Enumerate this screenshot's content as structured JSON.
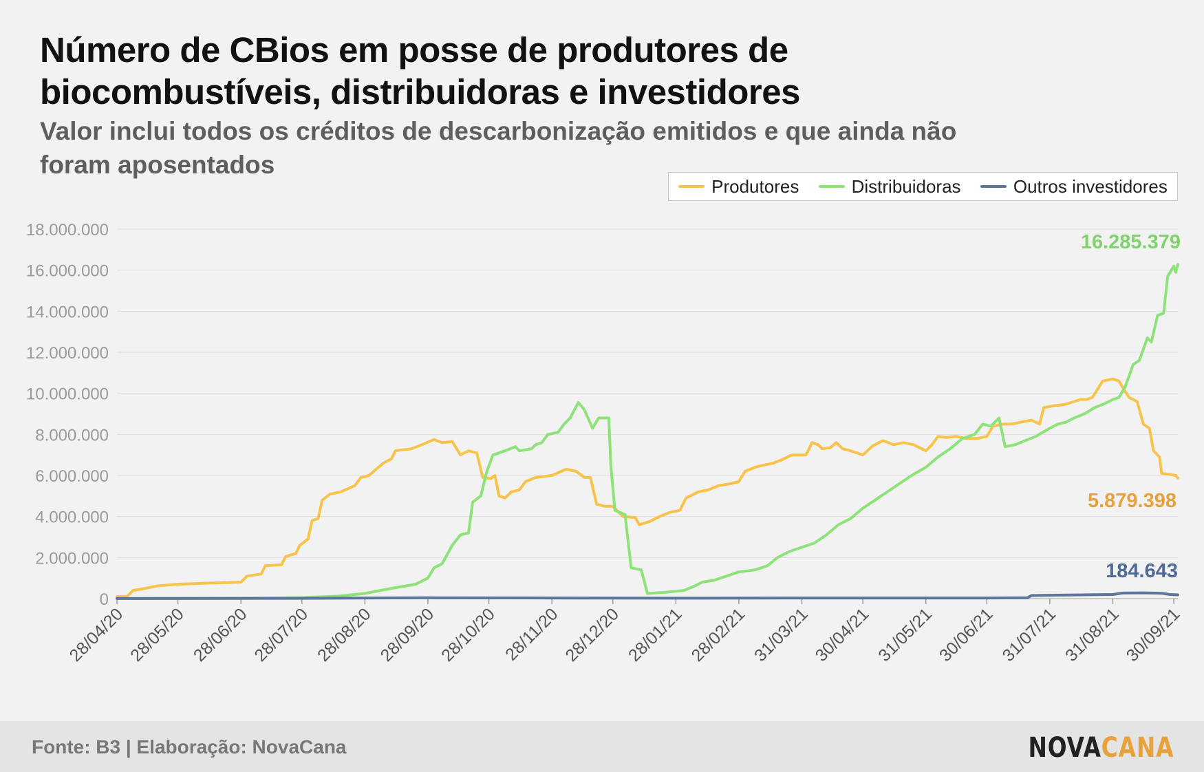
{
  "title": "Número de CBios em posse de produtores de biocombustíveis, distribuidoras e investidores",
  "subtitle": "Valor inclui todos os créditos de descarbonização emitidos e que ainda não foram aposentados",
  "footer": {
    "source": "Fonte: B3 | Elaboração: NovaCana",
    "logo_part1": "NOVA",
    "logo_part2": "CANA"
  },
  "colors": {
    "produtores": "#f8c34a",
    "distribuidoras": "#8ee27a",
    "outros": "#5b7699",
    "grid": "#dedede",
    "axis_text": "#9a9a9a",
    "tick_text": "#555555"
  },
  "chart_data": {
    "type": "line",
    "legend_position": "top-right",
    "grid": true,
    "ylim": [
      0,
      18000000
    ],
    "yticks": [
      0,
      2000000,
      4000000,
      6000000,
      8000000,
      10000000,
      12000000,
      14000000,
      16000000,
      18000000
    ],
    "ytick_labels": [
      "0",
      "2.000.000",
      "4.000.000",
      "6.000.000",
      "8.000.000",
      "10.000.000",
      "12.000.000",
      "14.000.000",
      "16.000.000",
      "18.000.000"
    ],
    "xlim": [
      "2020-04-28",
      "2021-10-02"
    ],
    "xticks": [
      "2020-04-28",
      "2020-05-28",
      "2020-06-28",
      "2020-07-28",
      "2020-08-28",
      "2020-09-28",
      "2020-10-28",
      "2020-11-28",
      "2020-12-28",
      "2021-01-28",
      "2021-02-28",
      "2021-03-31",
      "2021-04-30",
      "2021-05-31",
      "2021-06-30",
      "2021-07-31",
      "2021-08-31",
      "2021-09-30"
    ],
    "xtick_labels": [
      "28/04/20",
      "28/05/20",
      "28/06/20",
      "28/07/20",
      "28/08/20",
      "28/09/20",
      "28/10/20",
      "28/11/20",
      "28/12/20",
      "28/01/21",
      "28/02/21",
      "31/03/21",
      "30/04/21",
      "31/05/21",
      "30/06/21",
      "31/07/21",
      "31/08/21",
      "30/09/21"
    ],
    "series": [
      {
        "name": "Produtores",
        "color": "#f8c34a",
        "end_label": "5.879.398",
        "points": [
          [
            "2020-04-28",
            100000
          ],
          [
            "2020-05-03",
            110000
          ],
          [
            "2020-05-06",
            400000
          ],
          [
            "2020-05-12",
            500000
          ],
          [
            "2020-05-18",
            620000
          ],
          [
            "2020-05-28",
            700000
          ],
          [
            "2020-06-10",
            750000
          ],
          [
            "2020-06-28",
            800000
          ],
          [
            "2020-07-01",
            1100000
          ],
          [
            "2020-07-08",
            1200000
          ],
          [
            "2020-07-10",
            1600000
          ],
          [
            "2020-07-18",
            1650000
          ],
          [
            "2020-07-20",
            2050000
          ],
          [
            "2020-07-25",
            2200000
          ],
          [
            "2020-07-27",
            2600000
          ],
          [
            "2020-07-31",
            2900000
          ],
          [
            "2020-08-02",
            3800000
          ],
          [
            "2020-08-05",
            3900000
          ],
          [
            "2020-08-07",
            4800000
          ],
          [
            "2020-08-11",
            5100000
          ],
          [
            "2020-08-16",
            5200000
          ],
          [
            "2020-08-23",
            5500000
          ],
          [
            "2020-08-26",
            5900000
          ],
          [
            "2020-08-30",
            6000000
          ],
          [
            "2020-09-06",
            6600000
          ],
          [
            "2020-09-10",
            6800000
          ],
          [
            "2020-09-12",
            7200000
          ],
          [
            "2020-09-20",
            7300000
          ],
          [
            "2020-09-25",
            7500000
          ],
          [
            "2020-10-01",
            7750000
          ],
          [
            "2020-10-05",
            7600000
          ],
          [
            "2020-10-10",
            7650000
          ],
          [
            "2020-10-14",
            7000000
          ],
          [
            "2020-10-18",
            7200000
          ],
          [
            "2020-10-22",
            7100000
          ],
          [
            "2020-10-25",
            5900000
          ],
          [
            "2020-10-29",
            5850000
          ],
          [
            "2020-10-31",
            6000000
          ],
          [
            "2020-11-02",
            5000000
          ],
          [
            "2020-11-05",
            4900000
          ],
          [
            "2020-11-08",
            5200000
          ],
          [
            "2020-11-12",
            5300000
          ],
          [
            "2020-11-15",
            5700000
          ],
          [
            "2020-11-20",
            5900000
          ],
          [
            "2020-11-28",
            6000000
          ],
          [
            "2020-12-05",
            6300000
          ],
          [
            "2020-12-10",
            6200000
          ],
          [
            "2020-12-14",
            5900000
          ],
          [
            "2020-12-17",
            5900000
          ],
          [
            "2020-12-20",
            4600000
          ],
          [
            "2020-12-24",
            4500000
          ],
          [
            "2020-12-28",
            4500000
          ],
          [
            "2021-01-02",
            4000000
          ],
          [
            "2021-01-08",
            3950000
          ],
          [
            "2021-01-10",
            3600000
          ],
          [
            "2021-01-15",
            3750000
          ],
          [
            "2021-01-20",
            4000000
          ],
          [
            "2021-01-25",
            4200000
          ],
          [
            "2021-01-30",
            4300000
          ],
          [
            "2021-02-02",
            4900000
          ],
          [
            "2021-02-08",
            5200000
          ],
          [
            "2021-02-13",
            5300000
          ],
          [
            "2021-02-18",
            5500000
          ],
          [
            "2021-02-24",
            5600000
          ],
          [
            "2021-02-28",
            5700000
          ],
          [
            "2021-03-03",
            6200000
          ],
          [
            "2021-03-08",
            6400000
          ],
          [
            "2021-03-12",
            6500000
          ],
          [
            "2021-03-17",
            6600000
          ],
          [
            "2021-03-22",
            6800000
          ],
          [
            "2021-03-26",
            7000000
          ],
          [
            "2021-04-02",
            7000000
          ],
          [
            "2021-04-05",
            7600000
          ],
          [
            "2021-04-08",
            7500000
          ],
          [
            "2021-04-10",
            7300000
          ],
          [
            "2021-04-14",
            7350000
          ],
          [
            "2021-04-17",
            7600000
          ],
          [
            "2021-04-20",
            7300000
          ],
          [
            "2021-04-24",
            7200000
          ],
          [
            "2021-04-30",
            7000000
          ],
          [
            "2021-05-05",
            7450000
          ],
          [
            "2021-05-10",
            7700000
          ],
          [
            "2021-05-15",
            7500000
          ],
          [
            "2021-05-20",
            7600000
          ],
          [
            "2021-05-25",
            7500000
          ],
          [
            "2021-05-31",
            7200000
          ],
          [
            "2021-06-03",
            7500000
          ],
          [
            "2021-06-06",
            7900000
          ],
          [
            "2021-06-10",
            7850000
          ],
          [
            "2021-06-15",
            7900000
          ],
          [
            "2021-06-20",
            7800000
          ],
          [
            "2021-06-25",
            7800000
          ],
          [
            "2021-06-30",
            7900000
          ],
          [
            "2021-07-03",
            8400000
          ],
          [
            "2021-07-08",
            8500000
          ],
          [
            "2021-07-12",
            8500000
          ],
          [
            "2021-07-17",
            8600000
          ],
          [
            "2021-07-22",
            8700000
          ],
          [
            "2021-07-26",
            8500000
          ],
          [
            "2021-07-28",
            9300000
          ],
          [
            "2021-08-02",
            9400000
          ],
          [
            "2021-08-07",
            9450000
          ],
          [
            "2021-08-12",
            9600000
          ],
          [
            "2021-08-15",
            9700000
          ],
          [
            "2021-08-18",
            9700000
          ],
          [
            "2021-08-21",
            9800000
          ],
          [
            "2021-08-26",
            10600000
          ],
          [
            "2021-08-31",
            10700000
          ],
          [
            "2021-09-03",
            10600000
          ],
          [
            "2021-09-06",
            10100000
          ],
          [
            "2021-09-08",
            9800000
          ],
          [
            "2021-09-12",
            9600000
          ],
          [
            "2021-09-15",
            8500000
          ],
          [
            "2021-09-18",
            8300000
          ],
          [
            "2021-09-20",
            7200000
          ],
          [
            "2021-09-23",
            6900000
          ],
          [
            "2021-09-24",
            6100000
          ],
          [
            "2021-09-28",
            6050000
          ],
          [
            "2021-10-01",
            6000000
          ],
          [
            "2021-10-02",
            5879398
          ]
        ]
      },
      {
        "name": "Distribuidoras",
        "color": "#8ee27a",
        "end_label": "16.285.379",
        "points": [
          [
            "2020-04-28",
            0
          ],
          [
            "2020-06-28",
            10000
          ],
          [
            "2020-07-28",
            50000
          ],
          [
            "2020-08-15",
            120000
          ],
          [
            "2020-08-28",
            250000
          ],
          [
            "2020-09-10",
            500000
          ],
          [
            "2020-09-22",
            700000
          ],
          [
            "2020-09-28",
            1000000
          ],
          [
            "2020-10-01",
            1500000
          ],
          [
            "2020-10-05",
            1700000
          ],
          [
            "2020-10-10",
            2600000
          ],
          [
            "2020-10-14",
            3100000
          ],
          [
            "2020-10-18",
            3200000
          ],
          [
            "2020-10-20",
            4700000
          ],
          [
            "2020-10-24",
            5000000
          ],
          [
            "2020-10-27",
            6200000
          ],
          [
            "2020-10-30",
            7000000
          ],
          [
            "2020-11-05",
            7200000
          ],
          [
            "2020-11-10",
            7400000
          ],
          [
            "2020-11-12",
            7200000
          ],
          [
            "2020-11-18",
            7300000
          ],
          [
            "2020-11-20",
            7500000
          ],
          [
            "2020-11-23",
            7600000
          ],
          [
            "2020-11-26",
            8000000
          ],
          [
            "2020-12-01",
            8100000
          ],
          [
            "2020-12-04",
            8500000
          ],
          [
            "2020-12-07",
            8800000
          ],
          [
            "2020-12-11",
            9550000
          ],
          [
            "2020-12-14",
            9200000
          ],
          [
            "2020-12-18",
            8300000
          ],
          [
            "2020-12-21",
            8800000
          ],
          [
            "2020-12-26",
            8800000
          ],
          [
            "2020-12-27",
            6500000
          ],
          [
            "2020-12-29",
            4300000
          ],
          [
            "2021-01-03",
            4100000
          ],
          [
            "2021-01-06",
            1500000
          ],
          [
            "2021-01-11",
            1400000
          ],
          [
            "2021-01-14",
            250000
          ],
          [
            "2021-01-22",
            300000
          ],
          [
            "2021-02-01",
            400000
          ],
          [
            "2021-02-06",
            600000
          ],
          [
            "2021-02-10",
            800000
          ],
          [
            "2021-02-16",
            900000
          ],
          [
            "2021-02-22",
            1100000
          ],
          [
            "2021-02-28",
            1300000
          ],
          [
            "2021-03-08",
            1400000
          ],
          [
            "2021-03-14",
            1600000
          ],
          [
            "2021-03-19",
            2000000
          ],
          [
            "2021-03-25",
            2300000
          ],
          [
            "2021-03-31",
            2500000
          ],
          [
            "2021-04-06",
            2700000
          ],
          [
            "2021-04-12",
            3100000
          ],
          [
            "2021-04-18",
            3600000
          ],
          [
            "2021-04-24",
            3900000
          ],
          [
            "2021-04-30",
            4400000
          ],
          [
            "2021-05-06",
            4800000
          ],
          [
            "2021-05-12",
            5200000
          ],
          [
            "2021-05-18",
            5600000
          ],
          [
            "2021-05-24",
            6000000
          ],
          [
            "2021-05-31",
            6400000
          ],
          [
            "2021-06-06",
            6900000
          ],
          [
            "2021-06-12",
            7300000
          ],
          [
            "2021-06-18",
            7800000
          ],
          [
            "2021-06-24",
            8000000
          ],
          [
            "2021-06-28",
            8500000
          ],
          [
            "2021-07-02",
            8400000
          ],
          [
            "2021-07-06",
            8800000
          ],
          [
            "2021-07-09",
            7400000
          ],
          [
            "2021-07-14",
            7500000
          ],
          [
            "2021-07-19",
            7700000
          ],
          [
            "2021-07-24",
            7900000
          ],
          [
            "2021-07-31",
            8300000
          ],
          [
            "2021-08-04",
            8500000
          ],
          [
            "2021-08-08",
            8600000
          ],
          [
            "2021-08-12",
            8800000
          ],
          [
            "2021-08-17",
            9000000
          ],
          [
            "2021-08-22",
            9300000
          ],
          [
            "2021-08-27",
            9500000
          ],
          [
            "2021-08-31",
            9700000
          ],
          [
            "2021-09-03",
            9800000
          ],
          [
            "2021-09-06",
            10300000
          ],
          [
            "2021-09-10",
            11400000
          ],
          [
            "2021-09-13",
            11600000
          ],
          [
            "2021-09-17",
            12700000
          ],
          [
            "2021-09-19",
            12500000
          ],
          [
            "2021-09-22",
            13800000
          ],
          [
            "2021-09-25",
            13900000
          ],
          [
            "2021-09-27",
            15700000
          ],
          [
            "2021-09-30",
            16200000
          ],
          [
            "2021-10-01",
            15900000
          ],
          [
            "2021-10-02",
            16285379
          ]
        ]
      },
      {
        "name": "Outros investidores",
        "color": "#5b7699",
        "end_label": "184.643",
        "points": [
          [
            "2020-04-28",
            5000
          ],
          [
            "2020-07-28",
            15000
          ],
          [
            "2020-09-28",
            40000
          ],
          [
            "2020-11-28",
            30000
          ],
          [
            "2021-01-28",
            20000
          ],
          [
            "2021-03-31",
            30000
          ],
          [
            "2021-06-30",
            30000
          ],
          [
            "2021-07-20",
            40000
          ],
          [
            "2021-07-22",
            150000
          ],
          [
            "2021-08-31",
            200000
          ],
          [
            "2021-09-05",
            270000
          ],
          [
            "2021-09-15",
            280000
          ],
          [
            "2021-09-24",
            260000
          ],
          [
            "2021-09-28",
            200000
          ],
          [
            "2021-10-02",
            184643
          ]
        ]
      }
    ]
  }
}
